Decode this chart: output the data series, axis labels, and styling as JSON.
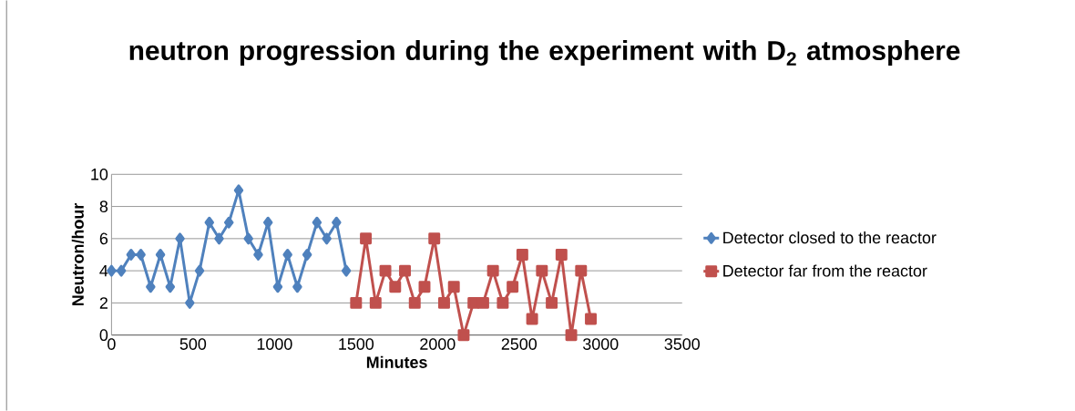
{
  "chart_data": {
    "type": "line",
    "title": "neutron progression during the experiment with D$_{2}$ atmosphere",
    "xlabel": "Minutes",
    "ylabel": "Neutron/hour",
    "xlim": [
      0,
      3500
    ],
    "xticks": [
      0,
      500,
      1000,
      1500,
      2000,
      2500,
      3000,
      3500
    ],
    "ylim": [
      0,
      10
    ],
    "yticks": [
      0,
      2,
      4,
      6,
      8,
      10
    ],
    "grid": "y",
    "legend": "right",
    "series": [
      {
        "name": "Detector far from the reactor",
        "color": "#c0504d",
        "marker": "square",
        "x": [
          1500,
          1560,
          1620,
          1680,
          1740,
          1800,
          1860,
          1920,
          1980,
          2040,
          2100,
          2160,
          2220,
          2280,
          2340,
          2400,
          2460,
          2520,
          2580,
          2640,
          2700,
          2760,
          2820,
          2880,
          2940
        ],
        "values": [
          2,
          6,
          2,
          4,
          3,
          4,
          2,
          3,
          6,
          2,
          3,
          0,
          2,
          2,
          4,
          2,
          3,
          5,
          1,
          4,
          2,
          5,
          0,
          4,
          1
        ]
      },
      {
        "name": "Detector closed to the reactor",
        "color": "#4f81bd",
        "marker": "diamond",
        "x": [
          0,
          60,
          120,
          180,
          240,
          300,
          360,
          420,
          480,
          540,
          600,
          660,
          720,
          780,
          840,
          900,
          960,
          1020,
          1080,
          1140,
          1200,
          1260,
          1320,
          1380,
          1440
        ],
        "values": [
          4,
          4,
          5,
          5,
          3,
          5,
          3,
          6,
          2,
          4,
          7,
          6,
          7,
          9,
          6,
          5,
          7,
          3,
          5,
          3,
          5,
          7,
          6,
          7,
          4
        ]
      }
    ]
  }
}
